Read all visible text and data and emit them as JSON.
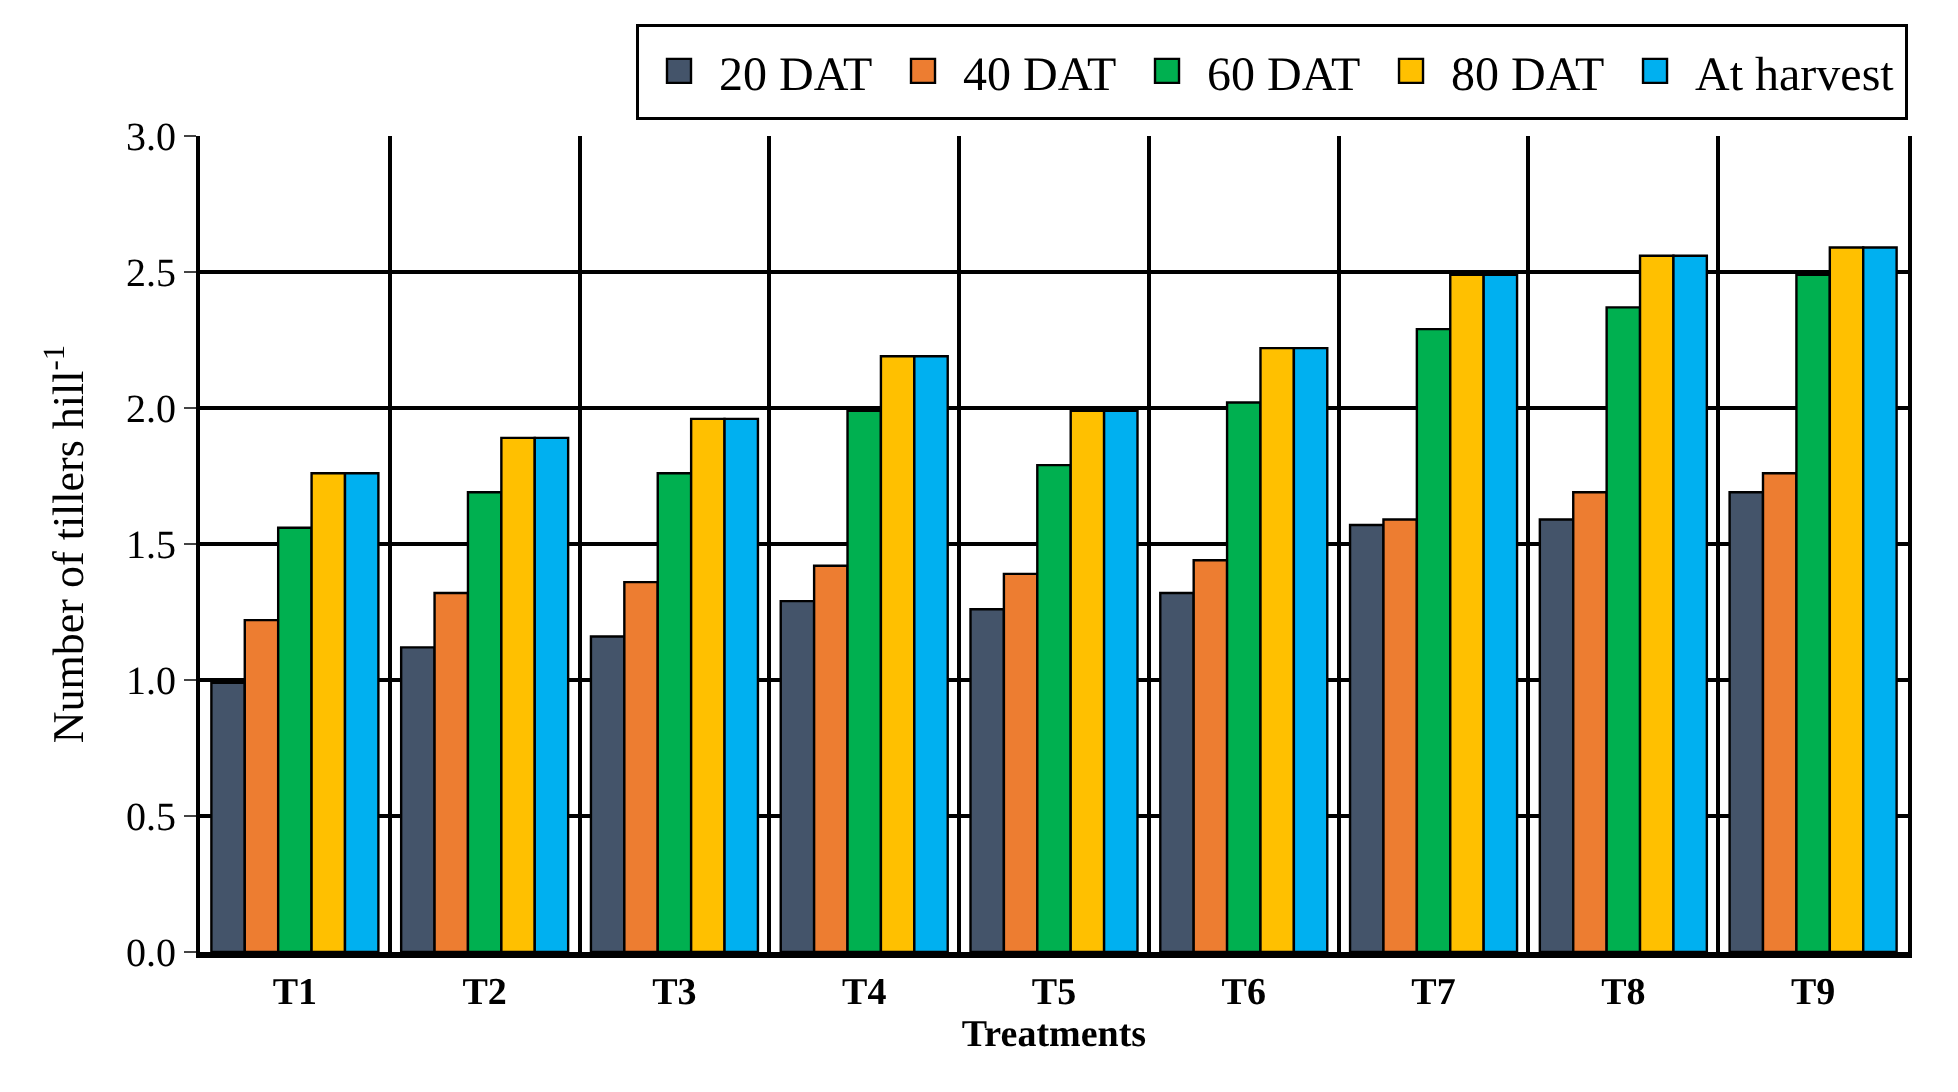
{
  "chart_data": {
    "type": "bar",
    "xlabel": "Treatments",
    "ylabel": "Number of tillers hill$^{-1}$",
    "categories": [
      "T1",
      "T2",
      "T3",
      "T4",
      "T5",
      "T6",
      "T7",
      "T8",
      "T9"
    ],
    "series": [
      {
        "name": "20 DAT",
        "color": "#44546a",
        "values": [
          0.99,
          1.12,
          1.16,
          1.29,
          1.26,
          1.32,
          1.57,
          1.59,
          1.69
        ]
      },
      {
        "name": "40 DAT",
        "color": "#ed7d31",
        "values": [
          1.22,
          1.32,
          1.36,
          1.42,
          1.39,
          1.44,
          1.59,
          1.69,
          1.76
        ]
      },
      {
        "name": "60 DAT",
        "color": "#00b050",
        "values": [
          1.56,
          1.69,
          1.76,
          1.99,
          1.79,
          2.02,
          2.29,
          2.37,
          2.49
        ]
      },
      {
        "name": "80 DAT",
        "color": "#ffc000",
        "values": [
          1.76,
          1.89,
          1.96,
          2.19,
          1.99,
          2.22,
          2.49,
          2.56,
          2.59
        ]
      },
      {
        "name": "At harvest",
        "color": "#00b0f0",
        "values": [
          1.76,
          1.89,
          1.96,
          2.19,
          1.99,
          2.22,
          2.49,
          2.56,
          2.59
        ]
      }
    ],
    "ylim": [
      0,
      3
    ],
    "yticks": [
      {
        "value": 0,
        "label": "0.0"
      },
      {
        "value": 0.5,
        "label": "0.5"
      },
      {
        "value": 1,
        "label": "1.0"
      },
      {
        "value": 1.5,
        "label": "1.5"
      },
      {
        "value": 2,
        "label": "2.0"
      },
      {
        "value": 2.5,
        "label": "2.5"
      },
      {
        "value": 3,
        "label": "3.0"
      }
    ],
    "grid": true,
    "legend": "top right"
  }
}
